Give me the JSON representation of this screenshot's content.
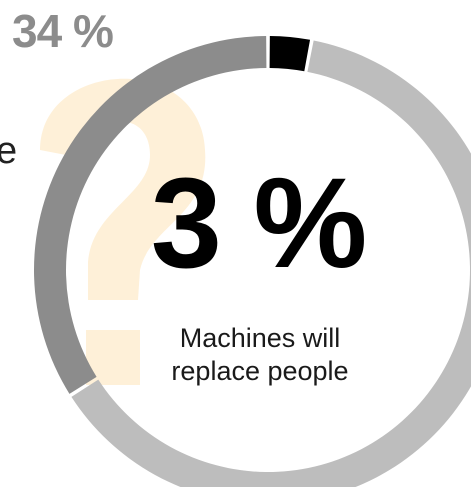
{
  "chart_data": {
    "type": "pie",
    "variant": "donut",
    "title": "",
    "center_value_label": "3 %",
    "center_caption_lines": [
      "Machines will",
      "replace people"
    ],
    "outside_value_label": "34 %",
    "partial_side_text": "e",
    "slices": [
      {
        "value": 3,
        "color": "#000000"
      },
      {
        "value": 63,
        "color": "#bdbdbd"
      },
      {
        "value": 34,
        "color": "#8c8c8c"
      }
    ],
    "background_question_mark_color": "#fde9c8",
    "ring_gap_color": "#ffffff"
  }
}
